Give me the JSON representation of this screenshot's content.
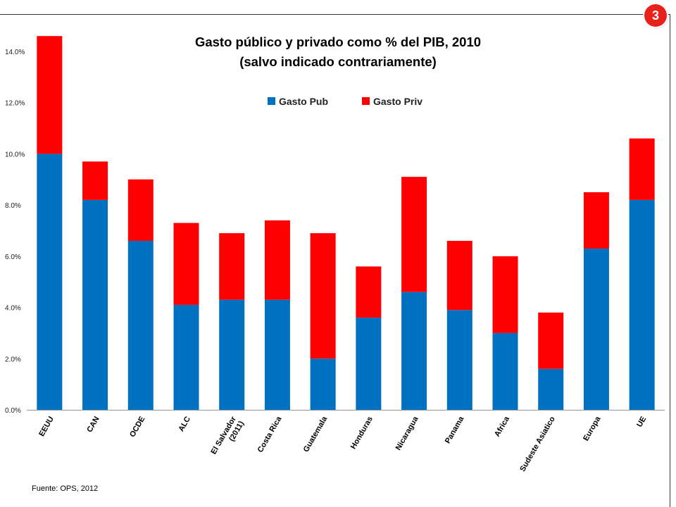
{
  "badge": "3",
  "source": "Fuente: OPS, 2012",
  "colors": {
    "pub": "#0070c0",
    "priv": "#ff0000",
    "badge": "#e8211b"
  },
  "chart_data": {
    "type": "bar",
    "stacked": true,
    "title": "Gasto público y privado como % del PIB, 2010",
    "subtitle": "(salvo indicado contrariamente)",
    "legend_position": "top",
    "grid": false,
    "ylim": [
      0,
      14
    ],
    "yticks": [
      "0.0%",
      "2.0%",
      "4.0%",
      "6.0%",
      "8.0%",
      "10.0%",
      "12.0%",
      "14.0%"
    ],
    "categories": [
      "EEUU",
      "CAN",
      "OCDE",
      "ALC",
      "El Salvador (2011)",
      "Costa Rica",
      "Guatemala",
      "Honduras",
      "Nicaragua",
      "Panama",
      "Africa",
      "Sudeste Asiatico",
      "Europa",
      "UE"
    ],
    "series": [
      {
        "name": "Gasto Pub",
        "values": [
          10.0,
          8.2,
          6.6,
          4.1,
          4.3,
          4.3,
          2.0,
          3.6,
          4.6,
          3.9,
          3.0,
          1.6,
          6.3,
          8.2
        ]
      },
      {
        "name": "Gasto Priv",
        "values": [
          4.6,
          1.5,
          2.4,
          3.2,
          2.6,
          3.1,
          4.9,
          2.0,
          4.5,
          2.7,
          3.0,
          2.2,
          2.2,
          2.4
        ]
      }
    ]
  }
}
